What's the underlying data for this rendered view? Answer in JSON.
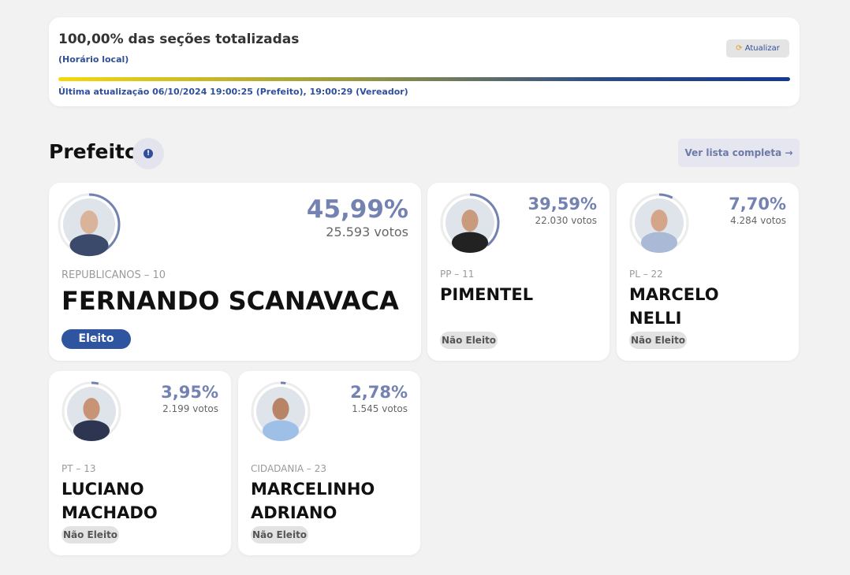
{
  "header": {
    "title": "100,00% das seções totalizadas",
    "subtitle": "(Horário local)",
    "button": "Atualizar",
    "last_update": "Última atualização 06/10/2024 19:00:25 (Prefeito), 19:00:29 (Vereador)"
  },
  "section": {
    "title": "Prefeito",
    "button": "Ver lista completa"
  },
  "candidates": [
    {
      "party": "REPUBLICANOS – 10",
      "name": "FERNANDO SCANAVACA",
      "percent": {
        "value": 45.99,
        "label": "45,99%"
      },
      "votes": "25.593 votos",
      "status": "Eleito"
    },
    {
      "party": "PP – 11",
      "name": "PIMENTEL",
      "percent": {
        "value": 39.59,
        "label": "39,59%"
      },
      "votes": "22.030 votos",
      "status": "Não Eleito"
    },
    {
      "party": "PL – 22",
      "name": "MARCELO NELLI",
      "percent": {
        "value": 7.7,
        "label": "7,70%"
      },
      "votes": "4.284 votos",
      "status": "Não Eleito"
    },
    {
      "party": "PT – 13",
      "name": "LUCIANO MACHADO",
      "percent": {
        "value": 3.95,
        "label": "3,95%"
      },
      "votes": "2.199 votos",
      "status": "Não Eleito"
    },
    {
      "party": "CIDADANIA – 23",
      "name": "MARCELINHO ADRIANO",
      "percent": {
        "value": 2.78,
        "label": "2,78%"
      },
      "votes": "1.545 votos",
      "status": "Não Eleito"
    }
  ]
}
